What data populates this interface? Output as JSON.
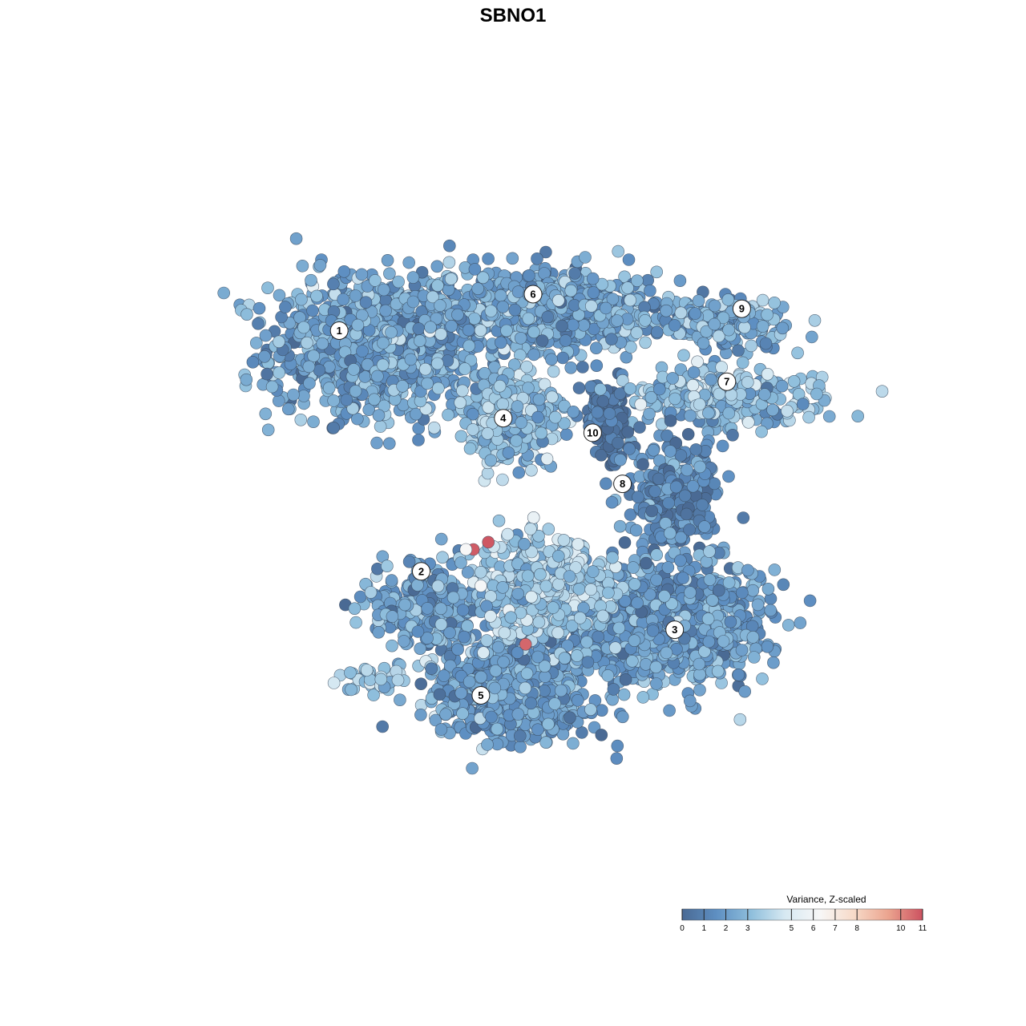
{
  "chart_data": {
    "type": "scatter",
    "title": "SBNO1",
    "xlabel": "",
    "ylabel": "",
    "grid": false,
    "axes_visible": false,
    "xlim": [
      0,
      100
    ],
    "ylim": [
      0,
      100
    ],
    "colorbar": {
      "title": "Variance, Z-scaled",
      "placement": "bottom-right",
      "range": [
        0,
        11
      ],
      "ticks": [
        0,
        1,
        2,
        3,
        5,
        6,
        7,
        8,
        10,
        11
      ],
      "colors": [
        "#4a6a94",
        "#5e8fc2",
        "#8ebedc",
        "#d7e9f2",
        "#f7f7f7",
        "#f7dac8",
        "#eba48f",
        "#cc5260"
      ]
    },
    "clusters": [
      {
        "label": "1",
        "x": 29,
        "y": 73,
        "sx": 9.5,
        "sy": 6.5,
        "n": 950,
        "mean": 2.3
      },
      {
        "label": "6",
        "x": 51,
        "y": 78,
        "sx": 10.5,
        "sy": 3.6,
        "n": 700,
        "mean": 2.3
      },
      {
        "label": "4",
        "x": 47,
        "y": 63,
        "sx": 4.0,
        "sy": 3.8,
        "n": 420,
        "mean": 3.1
      },
      {
        "label": "10",
        "x": 60,
        "y": 63,
        "sx": 2.2,
        "sy": 3.2,
        "n": 150,
        "mean": 0.5
      },
      {
        "label": "9",
        "x": 76,
        "y": 76,
        "sx": 6.0,
        "sy": 2.2,
        "n": 190,
        "mean": 2.4
      },
      {
        "label": "7",
        "x": 76,
        "y": 66,
        "sx": 8.5,
        "sy": 2.6,
        "n": 260,
        "mean": 3.0
      },
      {
        "label": "8",
        "x": 69,
        "y": 53,
        "sx": 4.0,
        "sy": 5.5,
        "n": 280,
        "mean": 1.4
      },
      {
        "label": "2",
        "x": 35,
        "y": 37,
        "sx": 5.0,
        "sy": 3.8,
        "n": 260,
        "mean": 2.2
      },
      {
        "label": "3",
        "x": 67,
        "y": 35,
        "sx": 9.5,
        "sy": 5.5,
        "n": 950,
        "mean": 2.1
      },
      {
        "label": "5",
        "x": 47,
        "y": 26,
        "sx": 7.0,
        "sy": 4.5,
        "n": 700,
        "mean": 2.2
      },
      {
        "label": "",
        "x": 51,
        "y": 40,
        "sx": 5.5,
        "sy": 4.5,
        "n": 550,
        "mean": 3.6
      },
      {
        "label": "",
        "x": 28,
        "y": 27,
        "sx": 3.0,
        "sy": 1.2,
        "n": 40,
        "mean": 3.3
      }
    ],
    "label_positions": [
      {
        "label": "1",
        "x": 24,
        "y": 75
      },
      {
        "label": "6",
        "x": 50,
        "y": 80
      },
      {
        "label": "9",
        "x": 78,
        "y": 78
      },
      {
        "label": "7",
        "x": 76,
        "y": 68
      },
      {
        "label": "4",
        "x": 46,
        "y": 63
      },
      {
        "label": "10",
        "x": 58,
        "y": 61
      },
      {
        "label": "8",
        "x": 62,
        "y": 54
      },
      {
        "label": "2",
        "x": 35,
        "y": 42
      },
      {
        "label": "3",
        "x": 69,
        "y": 34
      },
      {
        "label": "5",
        "x": 43,
        "y": 25
      }
    ],
    "outliers": [
      {
        "x": 42,
        "y": 45,
        "value": 10.8
      },
      {
        "x": 44,
        "y": 46,
        "value": 10.9
      },
      {
        "x": 49,
        "y": 32,
        "value": 10.6
      },
      {
        "x": 41,
        "y": 45,
        "value": 6.3
      },
      {
        "x": 43,
        "y": 40,
        "value": 6.2
      }
    ]
  }
}
